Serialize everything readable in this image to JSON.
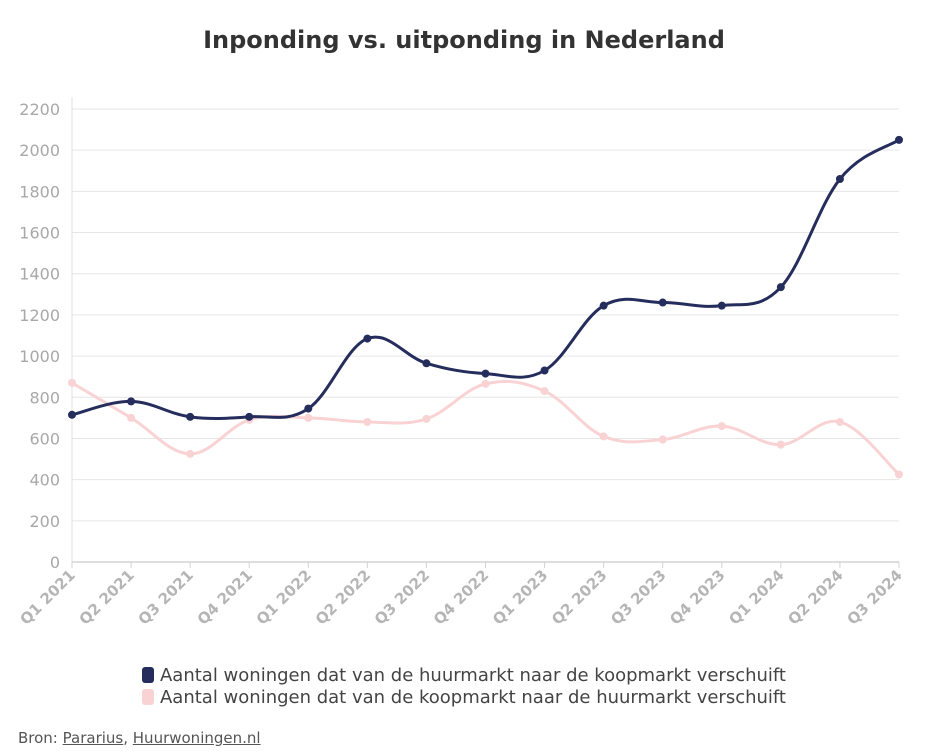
{
  "chart_data": {
    "type": "line",
    "title": "Inponding vs. uitponding in Nederland",
    "xlabel": "",
    "ylabel": "",
    "categories": [
      "Q1 2021",
      "Q2 2021",
      "Q3 2021",
      "Q4 2021",
      "Q1 2022",
      "Q2 2022",
      "Q3 2022",
      "Q4 2022",
      "Q1 2023",
      "Q2 2023",
      "Q3 2023",
      "Q4 2023",
      "Q1 2024",
      "Q2 2024",
      "Q3 2024"
    ],
    "ylim": [
      0,
      2200
    ],
    "yticks": [
      0,
      200,
      400,
      600,
      800,
      1000,
      1200,
      1400,
      1600,
      1800,
      2000,
      2200
    ],
    "grid": true,
    "legend_position": "bottom",
    "series": [
      {
        "name": "Aantal woningen dat van de huurmarkt naar de koopmarkt verschuift",
        "color": "#252d5c",
        "values": [
          715,
          780,
          705,
          705,
          745,
          1085,
          965,
          915,
          930,
          1245,
          1260,
          1245,
          1335,
          1860,
          2050
        ]
      },
      {
        "name": "Aantal woningen dat van de koopmarkt naar de huurmarkt verschuift",
        "color": "#f9d3d3",
        "values": [
          870,
          700,
          525,
          690,
          700,
          680,
          695,
          865,
          830,
          610,
          595,
          660,
          570,
          680,
          425
        ]
      }
    ]
  },
  "source": {
    "prefix": "Bron: ",
    "link1": "Pararius",
    "separator": ", ",
    "link2": "Huurwoningen.nl"
  }
}
